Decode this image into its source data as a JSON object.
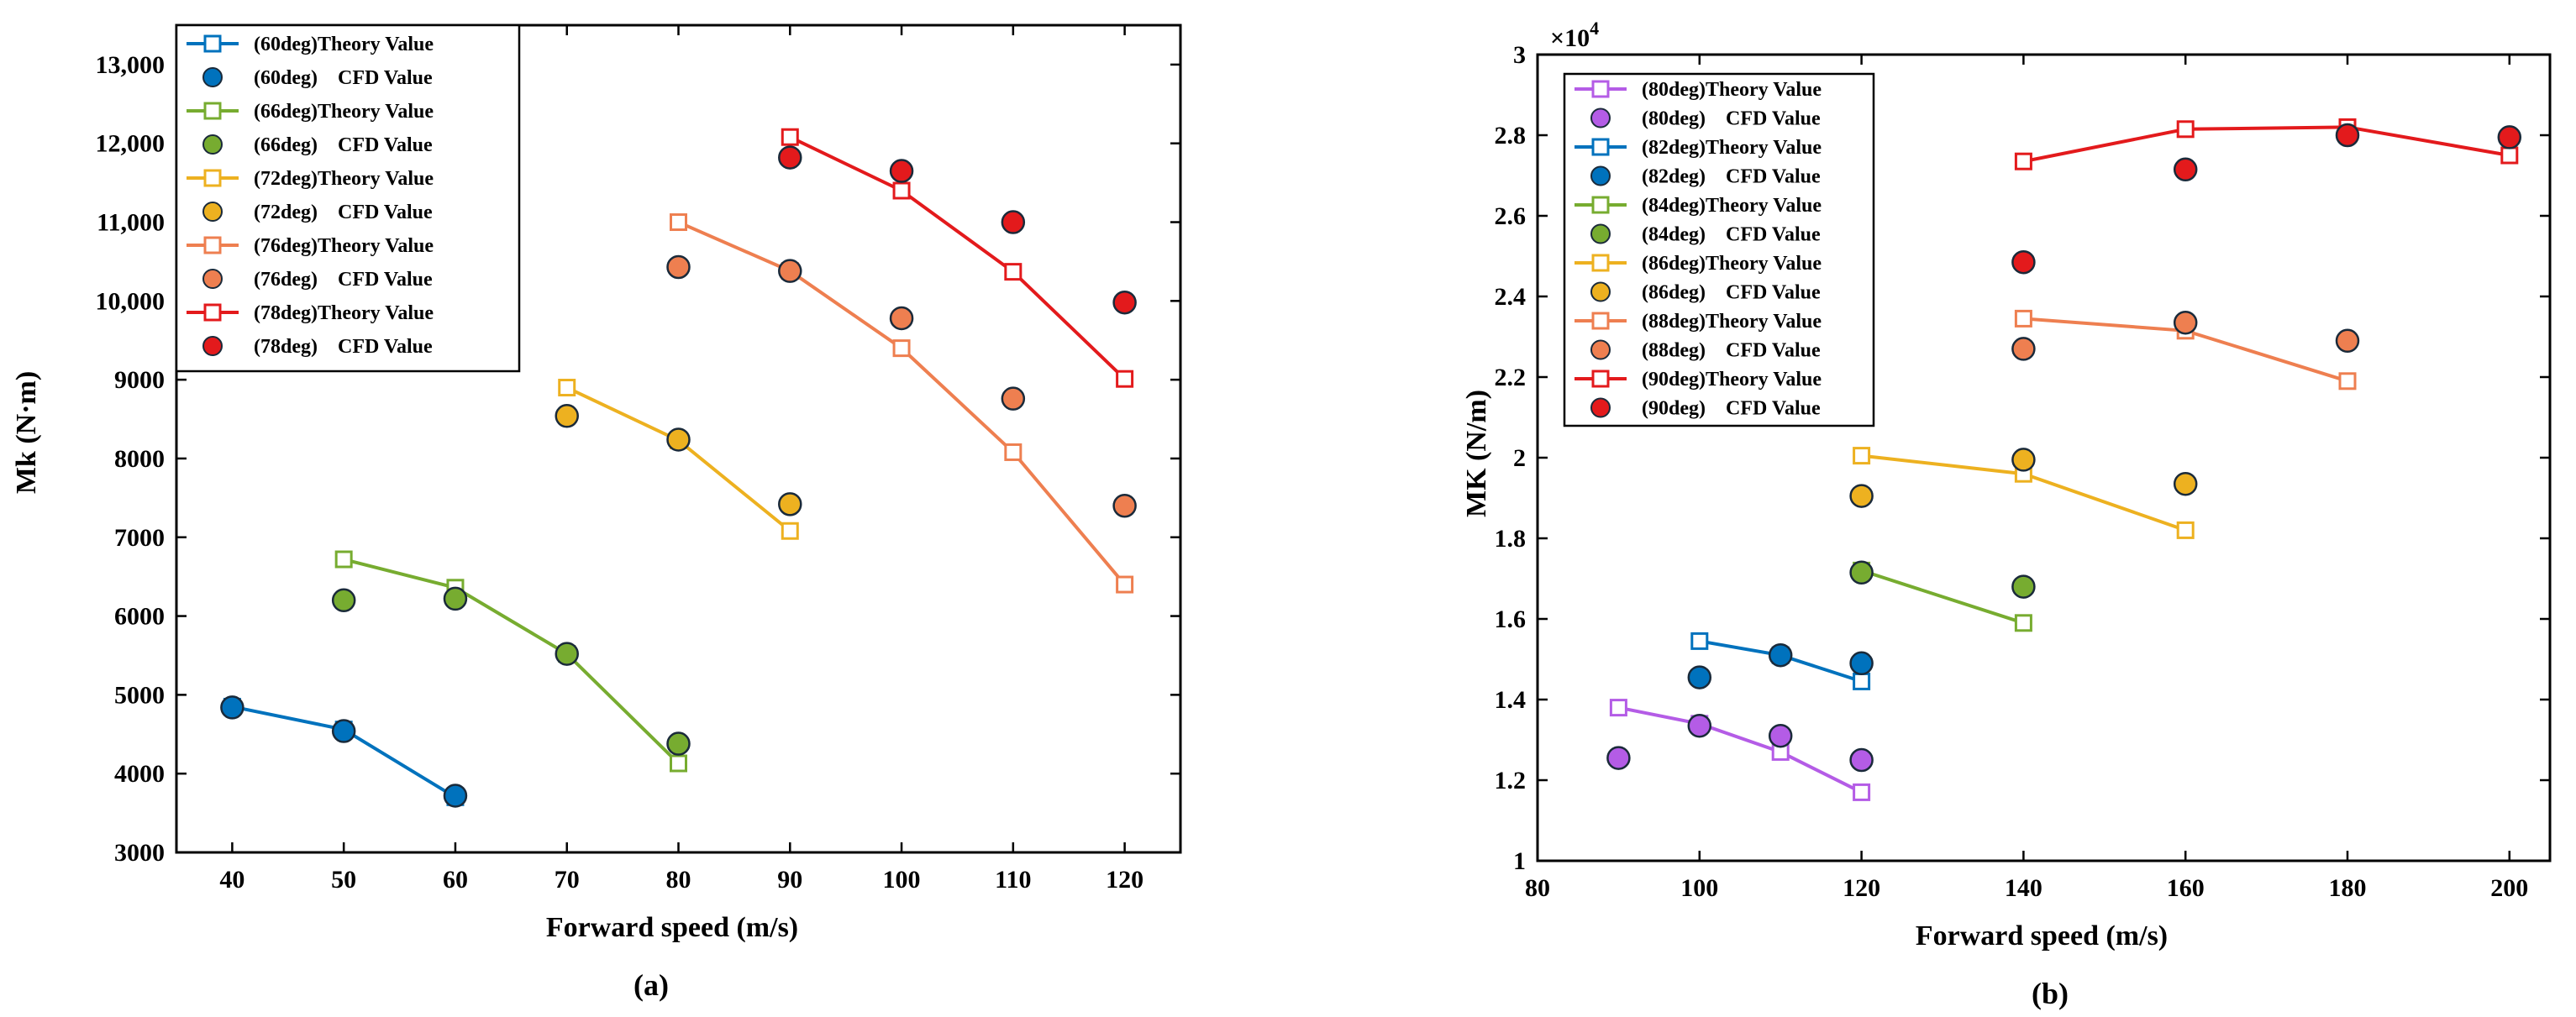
{
  "colors": {
    "blue": "#0072BD",
    "green": "#77AC30",
    "yellow": "#EDB120",
    "orange": "#EE7F50",
    "red": "#E31A1C",
    "purple": "#B45CE6"
  },
  "chart_data": [
    {
      "id": "a",
      "type": "line",
      "panel_label": "(a)",
      "xlabel": "Forward speed (m/s)",
      "ylabel": "Mk (N·m)",
      "xlim": [
        35,
        125
      ],
      "ylim": [
        3000,
        13500
      ],
      "xticks": [
        40,
        50,
        60,
        70,
        80,
        90,
        100,
        110,
        120
      ],
      "xtick_labels": [
        "40",
        "50",
        "60",
        "70",
        "80",
        "90",
        "100",
        "110",
        "120"
      ],
      "yticks": [
        3000,
        4000,
        5000,
        6000,
        7000,
        8000,
        9000,
        10000,
        11000,
        12000,
        13000
      ],
      "ytick_labels": [
        "3000",
        "4000",
        "5000",
        "6000",
        "7000",
        "8000",
        "9000",
        "10,000",
        "11,000",
        "12,000",
        "13,000"
      ],
      "legend_position": "top-left",
      "series": [
        {
          "angle": "(60deg)",
          "color": "blue",
          "theory_label": "(60deg)Theory Value",
          "cfd_label": "(60deg)    CFD Value",
          "theory": {
            "x": [
              40,
              50,
              60
            ],
            "y": [
              4850,
              4560,
              3700
            ]
          },
          "cfd": {
            "x": [
              40,
              50,
              60
            ],
            "y": [
              4840,
              4540,
              3720
            ]
          }
        },
        {
          "angle": "(66deg)",
          "color": "green",
          "theory_label": "(66deg)Theory Value",
          "cfd_label": "(66deg)    CFD Value",
          "theory": {
            "x": [
              50,
              60,
              70,
              80
            ],
            "y": [
              6720,
              6360,
              5520,
              4130
            ]
          },
          "cfd": {
            "x": [
              50,
              60,
              70,
              80
            ],
            "y": [
              6200,
              6220,
              5520,
              4380
            ]
          }
        },
        {
          "angle": "(72deg)",
          "color": "yellow",
          "theory_label": "(72deg)Theory Value",
          "cfd_label": "(72deg)    CFD Value",
          "theory": {
            "x": [
              70,
              80,
              90
            ],
            "y": [
              8900,
              8230,
              7080
            ]
          },
          "cfd": {
            "x": [
              70,
              80,
              90
            ],
            "y": [
              8540,
              8240,
              7420
            ]
          }
        },
        {
          "angle": "(76deg)",
          "color": "orange",
          "theory_label": "(76deg)Theory Value",
          "cfd_label": "(76deg)    CFD Value",
          "theory": {
            "x": [
              80,
              90,
              100,
              110,
              120
            ],
            "y": [
              11000,
              10380,
              9400,
              8080,
              6400
            ]
          },
          "cfd": {
            "x": [
              80,
              90,
              100,
              110,
              120
            ],
            "y": [
              10430,
              10380,
              9780,
              8760,
              7400
            ]
          }
        },
        {
          "angle": "(78deg)",
          "color": "red",
          "theory_label": "(78deg)Theory Value",
          "cfd_label": "(78deg)    CFD Value",
          "theory": {
            "x": [
              90,
              100,
              110,
              120
            ],
            "y": [
              12080,
              11400,
              10370,
              9010
            ]
          },
          "cfd": {
            "x": [
              90,
              100,
              110,
              120
            ],
            "y": [
              11820,
              11650,
              11000,
              9980
            ]
          }
        }
      ]
    },
    {
      "id": "b",
      "type": "line",
      "panel_label": "(b)",
      "xlabel": "Forward speed (m/s)",
      "ylabel": "MK  (N/m)",
      "exponent_label": "×10",
      "exponent_power": "4",
      "xlim": [
        80,
        205
      ],
      "ylim": [
        1,
        3
      ],
      "xticks": [
        80,
        100,
        120,
        140,
        160,
        180,
        200
      ],
      "xtick_labels": [
        "80",
        "100",
        "120",
        "140",
        "160",
        "180",
        "200"
      ],
      "yticks": [
        1,
        1.2,
        1.4,
        1.6,
        1.8,
        2,
        2.2,
        2.4,
        2.6,
        2.8,
        3
      ],
      "ytick_labels": [
        "1",
        "1.2",
        "1.4",
        "1.6",
        "1.8",
        "2",
        "2.2",
        "2.4",
        "2.6",
        "2.8",
        "3"
      ],
      "legend_position": "top-left",
      "series": [
        {
          "angle": "(80deg)",
          "color": "purple",
          "theory_label": "(80deg)Theory Value",
          "cfd_label": "(80deg)    CFD Value",
          "theory": {
            "x": [
              90,
              100,
              110,
              120
            ],
            "y": [
              1.38,
              1.34,
              1.27,
              1.17
            ]
          },
          "cfd": {
            "x": [
              90,
              100,
              110,
              120
            ],
            "y": [
              1.255,
              1.335,
              1.31,
              1.25
            ]
          }
        },
        {
          "angle": "(82deg)",
          "color": "blue",
          "theory_label": "(82deg)Theory Value",
          "cfd_label": "(82deg)    CFD Value",
          "theory": {
            "x": [
              100,
              110,
              120
            ],
            "y": [
              1.545,
              1.51,
              1.445
            ]
          },
          "cfd": {
            "x": [
              100,
              110,
              120
            ],
            "y": [
              1.455,
              1.51,
              1.49
            ]
          }
        },
        {
          "angle": "(84deg)",
          "color": "green",
          "theory_label": "(84deg)Theory Value",
          "cfd_label": "(84deg)    CFD Value",
          "theory": {
            "x": [
              120,
              140
            ],
            "y": [
              1.72,
              1.59
            ]
          },
          "cfd": {
            "x": [
              120,
              140
            ],
            "y": [
              1.715,
              1.68
            ]
          }
        },
        {
          "angle": "(86deg)",
          "color": "yellow",
          "theory_label": "(86deg)Theory Value",
          "cfd_label": "(86deg)    CFD Value",
          "theory": {
            "x": [
              120,
              140,
              160
            ],
            "y": [
              2.005,
              1.96,
              1.82
            ]
          },
          "cfd": {
            "x": [
              120,
              140,
              160
            ],
            "y": [
              1.905,
              1.995,
              1.935
            ]
          }
        },
        {
          "angle": "(88deg)",
          "color": "orange",
          "theory_label": "(88deg)Theory Value",
          "cfd_label": "(88deg)    CFD Value",
          "theory": {
            "x": [
              140,
              160,
              180
            ],
            "y": [
              2.345,
              2.315,
              2.19
            ]
          },
          "cfd": {
            "x": [
              140,
              160,
              180
            ],
            "y": [
              2.27,
              2.335,
              2.29
            ]
          }
        },
        {
          "angle": "(90deg)",
          "color": "red",
          "theory_label": "(90deg)Theory Value",
          "cfd_label": "(90deg)    CFD Value",
          "theory": {
            "x": [
              140,
              160,
              180,
              200
            ],
            "y": [
              2.735,
              2.815,
              2.82,
              2.75
            ]
          },
          "cfd": {
            "x": [
              140,
              160,
              180,
              200
            ],
            "y": [
              2.485,
              2.715,
              2.8,
              2.795
            ]
          }
        }
      ]
    }
  ]
}
